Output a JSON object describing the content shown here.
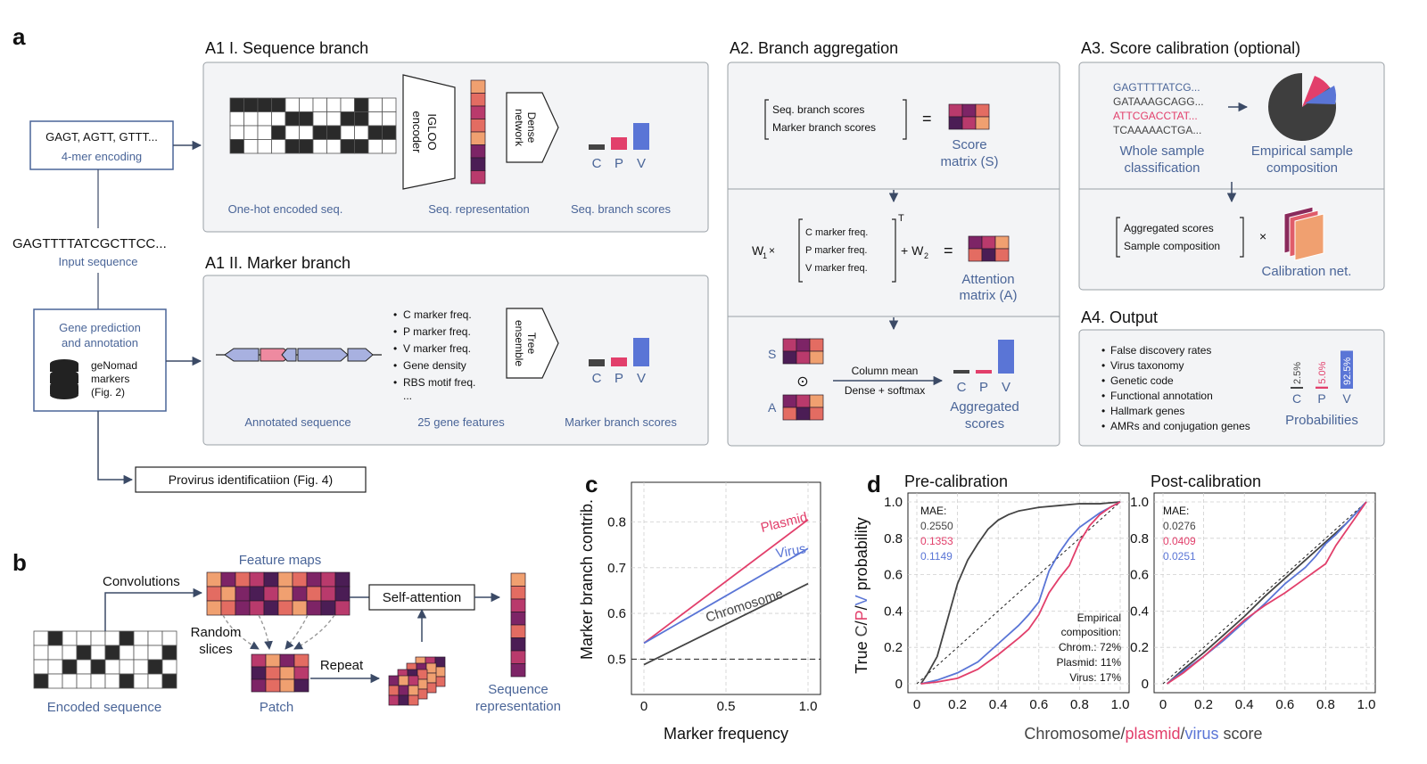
{
  "colors": {
    "blue": "#5a75d6",
    "pink": "#e23f6b",
    "gray": "#444444",
    "panel_bg": "#f3f4f6",
    "panel_border": "#9aa0a6",
    "label_blue": "#4a6598",
    "arrow": "#3b4a66",
    "heat": [
      "#f0a070",
      "#e36c62",
      "#b93a6c",
      "#7d2466",
      "#4b1d55"
    ]
  },
  "panel_letters": {
    "a": "a",
    "b": "b",
    "c": "c",
    "d": "d"
  },
  "section_a": {
    "kmer_box_text": "GAGT, AGTT, GTTT...",
    "kmer_box_label": "4-mer encoding",
    "input_sequence": "GAGTTTTATCGCTTCC...",
    "input_sequence_label": "Input sequence",
    "gene_box_title_1": "Gene prediction",
    "gene_box_title_2": "and annotation",
    "db_label_1": "geNomad",
    "db_label_2": "markers",
    "db_label_3": "(Fig. 2)",
    "provirus_box": "Provirus identificatiion (Fig. 4)",
    "seq_branch_title": "A1 I. Sequence branch",
    "seq_onehot_label": "One-hot encoded seq.",
    "seq_encoder_label_1": "IGLOO",
    "seq_encoder_label_2": "encoder",
    "seq_repr_label": "Seq. representation",
    "seq_dense_label_1": "Dense",
    "seq_dense_label_2": "network",
    "seq_scores_label": "Seq. branch scores",
    "seq_score_values": [
      0.15,
      0.35,
      0.75
    ],
    "cpv_letters": [
      "C",
      "P",
      "V"
    ],
    "marker_branch_title": "A1 II. Marker branch",
    "marker_annot_label": "Annotated sequence",
    "marker_features": [
      "C marker freq.",
      "P marker freq.",
      "V marker freq.",
      "Gene density",
      "RBS motif freq.",
      "..."
    ],
    "marker_features_label": "25 gene features",
    "marker_tree_label_1": "Tree",
    "marker_tree_label_2": "ensemble",
    "marker_scores_label": "Marker branch scores",
    "marker_score_values": [
      0.2,
      0.25,
      0.8
    ],
    "agg_title": "A2. Branch aggregation",
    "agg_matrix_rows": [
      "Seq. branch scores",
      "Marker branch scores"
    ],
    "agg_score_label_1": "Score",
    "agg_score_label_2": "matrix (S)",
    "agg_w1": "W",
    "agg_w1_sub": "1",
    "agg_w2": "+ W",
    "agg_w2_sub": "2",
    "agg_times": "×",
    "agg_equals": "=",
    "agg_transpose": "T",
    "agg_freq_rows": [
      "C marker freq.",
      "P marker freq.",
      "V marker freq."
    ],
    "agg_attention_label_1": "Attention",
    "agg_attention_label_2": "matrix (A)",
    "agg_s": "S",
    "agg_a": "A",
    "agg_odot": "⊙",
    "agg_column_mean": "Column mean",
    "agg_dense_softmax": "Dense + softmax",
    "agg_aggregated_label_1": "Aggregated",
    "agg_aggregated_label_2": "scores",
    "agg_score_values": [
      0.1,
      0.1,
      0.95
    ],
    "cal_title": "A3. Score calibration (optional)",
    "cal_seqs": [
      "GAGTTTTATCG...",
      "GATAAAGCAGG...",
      "ATTCGACCTAT...",
      "TCAAAAACTGA..."
    ],
    "cal_whole_label_1": "Whole sample",
    "cal_whole_label_2": "classification",
    "cal_empirical_label_1": "Empirical sample",
    "cal_empirical_label_2": "composition",
    "cal_matrix_rows": [
      "Aggregated scores",
      "Sample composition"
    ],
    "cal_times": "×",
    "cal_net_label": "Calibration net.",
    "output_title": "A4. Output",
    "output_items": [
      "False discovery rates",
      "Virus taxonomy",
      "Genetic code",
      "Functional annotation",
      "Hallmark genes",
      "AMRs and conjugation genes"
    ],
    "output_probs": [
      "2.5%",
      "5.0%",
      "92.5%"
    ],
    "output_prob_values": [
      2.5,
      5.0,
      92.5
    ],
    "output_prob_label": "Probabilities"
  },
  "section_b": {
    "convolutions": "Convolutions",
    "feature_maps": "Feature maps",
    "random_slices_1": "Random",
    "random_slices_2": "slices",
    "self_attention": "Self-attention",
    "repeat": "Repeat",
    "encoded_sequence": "Encoded sequence",
    "patch": "Patch",
    "sequence_repr_1": "Sequence",
    "sequence_repr_2": "representation"
  },
  "section_d": {
    "pre_title": "Pre-calibration",
    "post_title": "Post-calibration",
    "mae_label": "MAE:",
    "pre_mae": [
      "0.2550",
      "0.1353",
      "0.1149"
    ],
    "post_mae": [
      "0.0276",
      "0.0409",
      "0.0251"
    ],
    "empirical_lines": [
      "Empirical",
      "composition:",
      "Chrom.: 72%",
      "Plasmid: 11%",
      "Virus: 17%"
    ],
    "xlabel_parts": [
      "Chromosome",
      "/",
      "plasmid",
      "/",
      "virus",
      " score"
    ],
    "ylabel_parts": [
      "True ",
      "C",
      "/",
      "P",
      "/",
      "V",
      " probability"
    ]
  },
  "chart_data": [
    {
      "type": "line",
      "xlabel": "Marker frequency",
      "ylabel": "Marker branch contrib.",
      "xlim": [
        0,
        1.0
      ],
      "ylim": [
        0.45,
        0.84
      ],
      "xticks": [
        "0",
        "0.5",
        "1.0"
      ],
      "yticks": [
        "0.5",
        "0.6",
        "0.7",
        "0.8"
      ],
      "grid": true,
      "reference_line": 0.5,
      "series": [
        {
          "name": "Plasmid",
          "color": "#e23f6b",
          "x": [
            0,
            1.0
          ],
          "y": [
            0.535,
            0.805
          ]
        },
        {
          "name": "Virus",
          "color": "#5a75d6",
          "x": [
            0,
            1.0
          ],
          "y": [
            0.535,
            0.742
          ]
        },
        {
          "name": "Chromosome",
          "color": "#444444",
          "x": [
            0,
            1.0
          ],
          "y": [
            0.488,
            0.665
          ]
        }
      ]
    },
    {
      "type": "line",
      "title": "Pre-calibration",
      "xlim": [
        0,
        1.0
      ],
      "ylim": [
        0,
        1.0
      ],
      "xticks": [
        "0",
        "0.2",
        "0.4",
        "0.6",
        "0.8",
        "1.0"
      ],
      "yticks": [
        "0",
        "0.2",
        "0.4",
        "0.6",
        "0.8",
        "1.0"
      ],
      "grid": true,
      "series": [
        {
          "color": "#444444",
          "x": [
            0.02,
            0.05,
            0.1,
            0.15,
            0.2,
            0.25,
            0.3,
            0.35,
            0.4,
            0.45,
            0.5,
            0.6,
            0.7,
            0.8,
            0.9,
            1.0
          ],
          "y": [
            0.0,
            0.05,
            0.15,
            0.35,
            0.55,
            0.68,
            0.77,
            0.85,
            0.9,
            0.93,
            0.95,
            0.97,
            0.98,
            0.99,
            0.99,
            1.0
          ]
        },
        {
          "color": "#5a75d6",
          "x": [
            0.02,
            0.1,
            0.2,
            0.3,
            0.4,
            0.5,
            0.55,
            0.6,
            0.65,
            0.7,
            0.75,
            0.8,
            0.85,
            0.9,
            0.95,
            1.0
          ],
          "y": [
            0.0,
            0.02,
            0.06,
            0.12,
            0.22,
            0.32,
            0.38,
            0.45,
            0.62,
            0.72,
            0.8,
            0.86,
            0.9,
            0.94,
            0.97,
            1.0
          ]
        },
        {
          "color": "#e23f6b",
          "x": [
            0.02,
            0.1,
            0.2,
            0.3,
            0.4,
            0.5,
            0.55,
            0.6,
            0.65,
            0.7,
            0.75,
            0.8,
            0.85,
            0.9,
            0.95,
            1.0
          ],
          "y": [
            0.0,
            0.01,
            0.03,
            0.08,
            0.16,
            0.25,
            0.3,
            0.38,
            0.5,
            0.58,
            0.65,
            0.78,
            0.87,
            0.93,
            0.97,
            1.0
          ]
        }
      ]
    },
    {
      "type": "line",
      "title": "Post-calibration",
      "xlim": [
        0,
        1.0
      ],
      "ylim": [
        0,
        1.0
      ],
      "xticks": [
        "0",
        "0.2",
        "0.4",
        "0.6",
        "0.8",
        "1.0"
      ],
      "yticks": [
        "0",
        "0.2",
        "0.4",
        "0.6",
        "0.8",
        "1.0"
      ],
      "grid": true,
      "series": [
        {
          "color": "#444444",
          "x": [
            0.02,
            0.1,
            0.2,
            0.3,
            0.4,
            0.5,
            0.6,
            0.7,
            0.8,
            0.9,
            1.0
          ],
          "y": [
            0.0,
            0.08,
            0.17,
            0.27,
            0.37,
            0.48,
            0.58,
            0.68,
            0.78,
            0.88,
            1.0
          ]
        },
        {
          "color": "#5a75d6",
          "x": [
            0.02,
            0.1,
            0.2,
            0.3,
            0.4,
            0.5,
            0.6,
            0.7,
            0.75,
            0.8,
            0.85,
            0.9,
            1.0
          ],
          "y": [
            0.0,
            0.07,
            0.15,
            0.24,
            0.34,
            0.44,
            0.55,
            0.64,
            0.7,
            0.77,
            0.82,
            0.88,
            1.0
          ]
        },
        {
          "color": "#e23f6b",
          "x": [
            0.02,
            0.1,
            0.2,
            0.3,
            0.4,
            0.5,
            0.6,
            0.7,
            0.75,
            0.8,
            0.85,
            0.9,
            1.0
          ],
          "y": [
            0.0,
            0.06,
            0.15,
            0.25,
            0.35,
            0.43,
            0.5,
            0.58,
            0.62,
            0.66,
            0.76,
            0.84,
            1.0
          ]
        }
      ]
    }
  ]
}
